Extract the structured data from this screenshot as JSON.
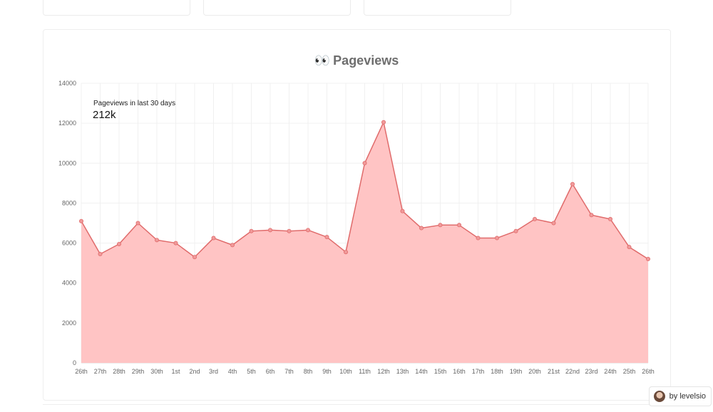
{
  "chart": {
    "title_icon": "👀",
    "title": "Pageviews",
    "summary_label": "Pageviews in last 30 days",
    "summary_value": "212k"
  },
  "credit": {
    "label": "by levelsio"
  },
  "colors": {
    "line": "#e06b6b",
    "fill": "#ffc4c4",
    "point": "#f09a9a",
    "grid": "#f0f0f0",
    "axis_text": "#666666"
  },
  "chart_data": {
    "type": "area",
    "title": "Pageviews",
    "xlabel": "",
    "ylabel": "",
    "ylim": [
      0,
      14000
    ],
    "y_ticks": [
      0,
      2000,
      4000,
      6000,
      8000,
      10000,
      12000,
      14000
    ],
    "grid": true,
    "categories": [
      "26th",
      "27th",
      "28th",
      "29th",
      "30th",
      "1st",
      "2nd",
      "3rd",
      "4th",
      "5th",
      "6th",
      "7th",
      "8th",
      "9th",
      "10th",
      "11th",
      "12th",
      "13th",
      "14th",
      "15th",
      "16th",
      "17th",
      "18th",
      "19th",
      "20th",
      "21st",
      "22nd",
      "23rd",
      "24th",
      "25th",
      "26th"
    ],
    "series": [
      {
        "values": [
          7100,
          5450,
          5950,
          7000,
          6150,
          6000,
          5300,
          6250,
          5900,
          6600,
          6650,
          6600,
          6650,
          6300,
          5550,
          10000,
          12050,
          7600,
          6750,
          6900,
          6900,
          6250,
          6250,
          6600,
          7200,
          7000,
          8950,
          7400,
          7200,
          5800,
          5200
        ]
      }
    ]
  }
}
